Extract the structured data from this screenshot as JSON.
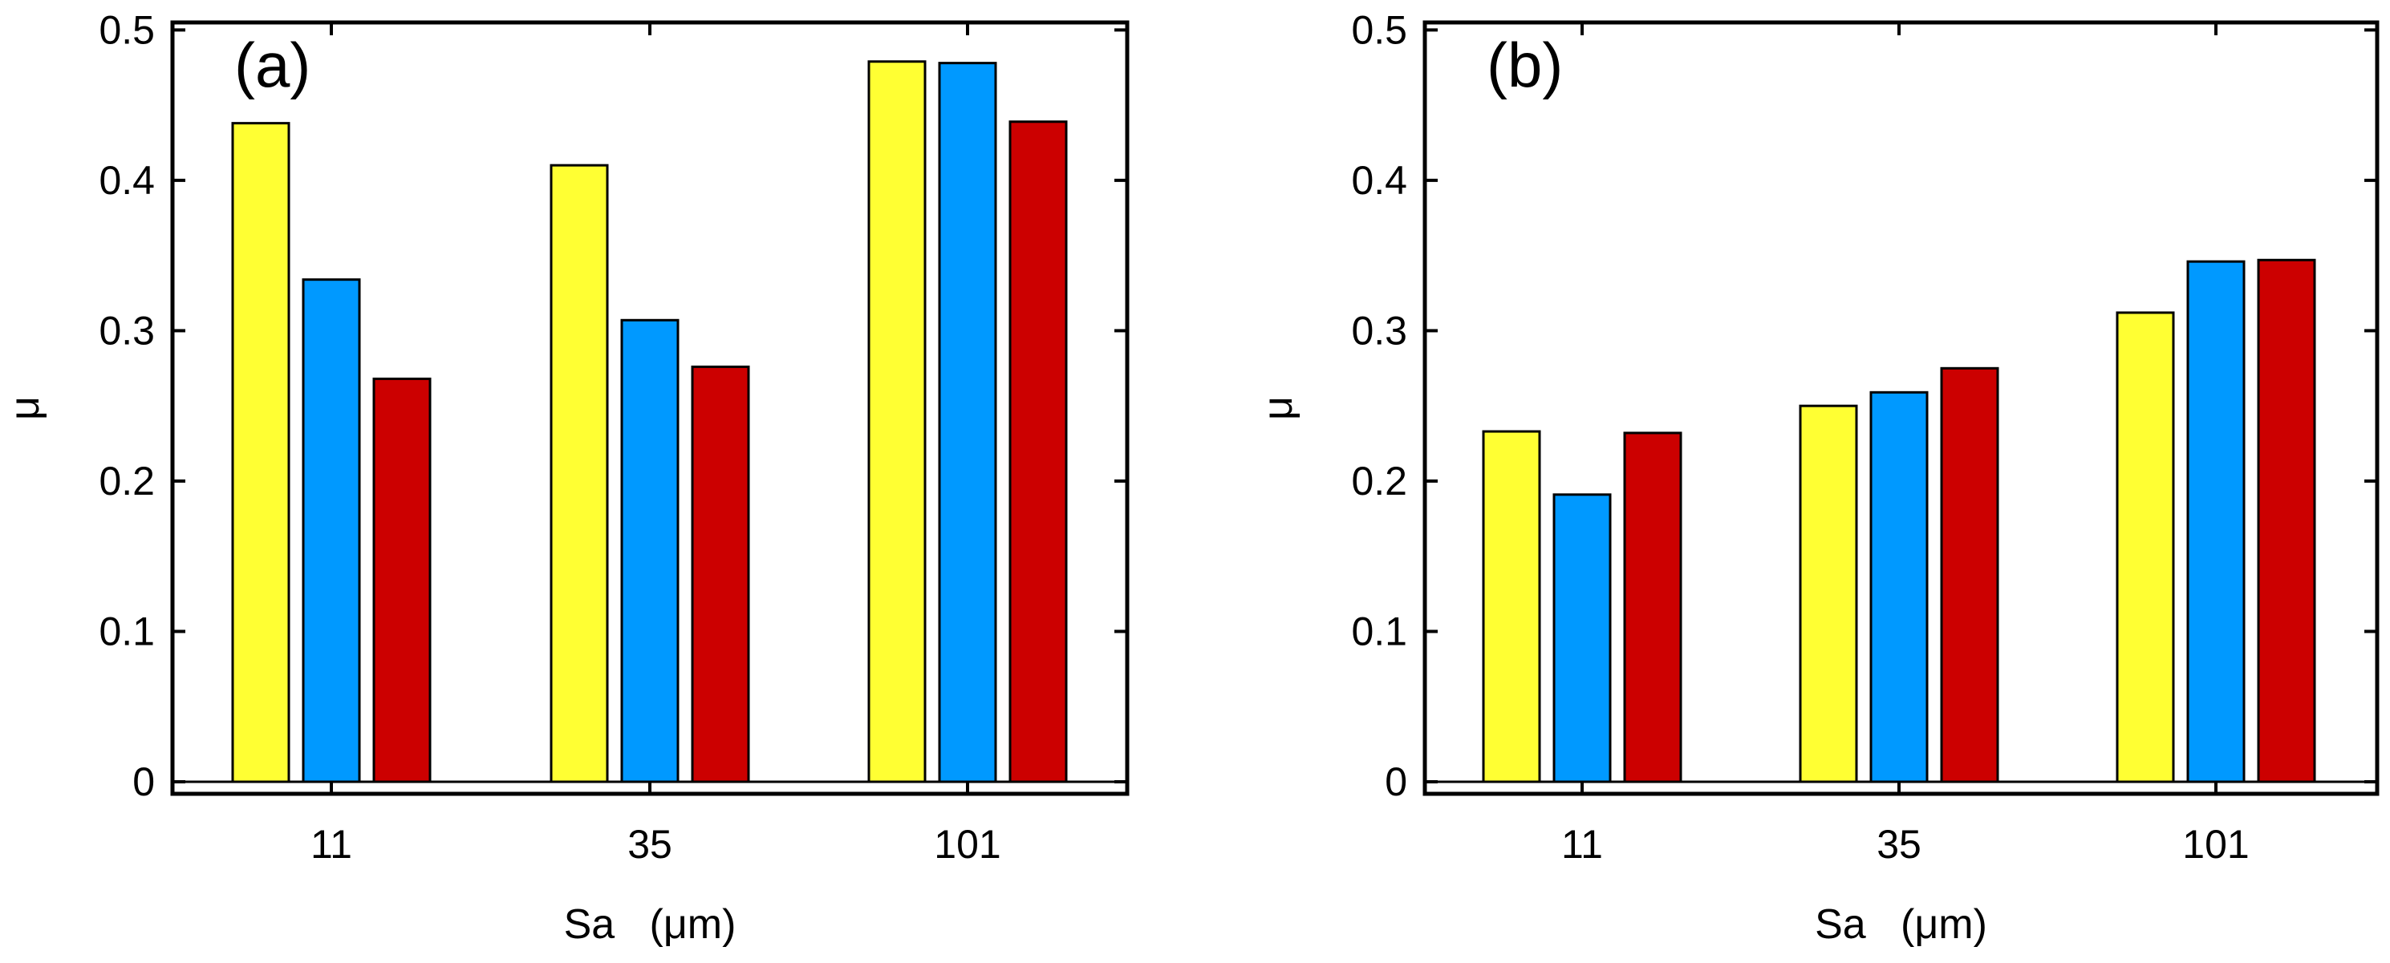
{
  "chart_data": [
    {
      "type": "bar",
      "panel_label": "(a)",
      "categories": [
        "11",
        "35",
        "101"
      ],
      "series": [
        {
          "name": "series-yellow",
          "color": "#ffff33",
          "values": [
            0.438,
            0.41,
            0.479
          ]
        },
        {
          "name": "series-blue",
          "color": "#0099ff",
          "values": [
            0.334,
            0.307,
            0.478
          ]
        },
        {
          "name": "series-red",
          "color": "#cc0000",
          "values": [
            0.268,
            0.276,
            0.439
          ]
        }
      ],
      "xlabel": "Sa   (μm)",
      "ylabel": "μ",
      "ylim": [
        -0.008,
        0.505
      ],
      "yticks": [
        0,
        0.1,
        0.2,
        0.3,
        0.4,
        0.5
      ],
      "ytick_labels": [
        "0",
        "0.1",
        "0.2",
        "0.3",
        "0.4",
        "0.5"
      ]
    },
    {
      "type": "bar",
      "panel_label": "(b)",
      "categories": [
        "11",
        "35",
        "101"
      ],
      "series": [
        {
          "name": "series-yellow",
          "color": "#ffff33",
          "values": [
            0.233,
            0.25,
            0.312
          ]
        },
        {
          "name": "series-blue",
          "color": "#0099ff",
          "values": [
            0.191,
            0.259,
            0.346
          ]
        },
        {
          "name": "series-red",
          "color": "#cc0000",
          "values": [
            0.232,
            0.275,
            0.347
          ]
        }
      ],
      "xlabel": "Sa   (μm)",
      "ylabel": "μ",
      "ylim": [
        -0.008,
        0.505
      ],
      "yticks": [
        0,
        0.1,
        0.2,
        0.3,
        0.4,
        0.5
      ],
      "ytick_labels": [
        "0",
        "0.1",
        "0.2",
        "0.3",
        "0.4",
        "0.5"
      ]
    }
  ]
}
